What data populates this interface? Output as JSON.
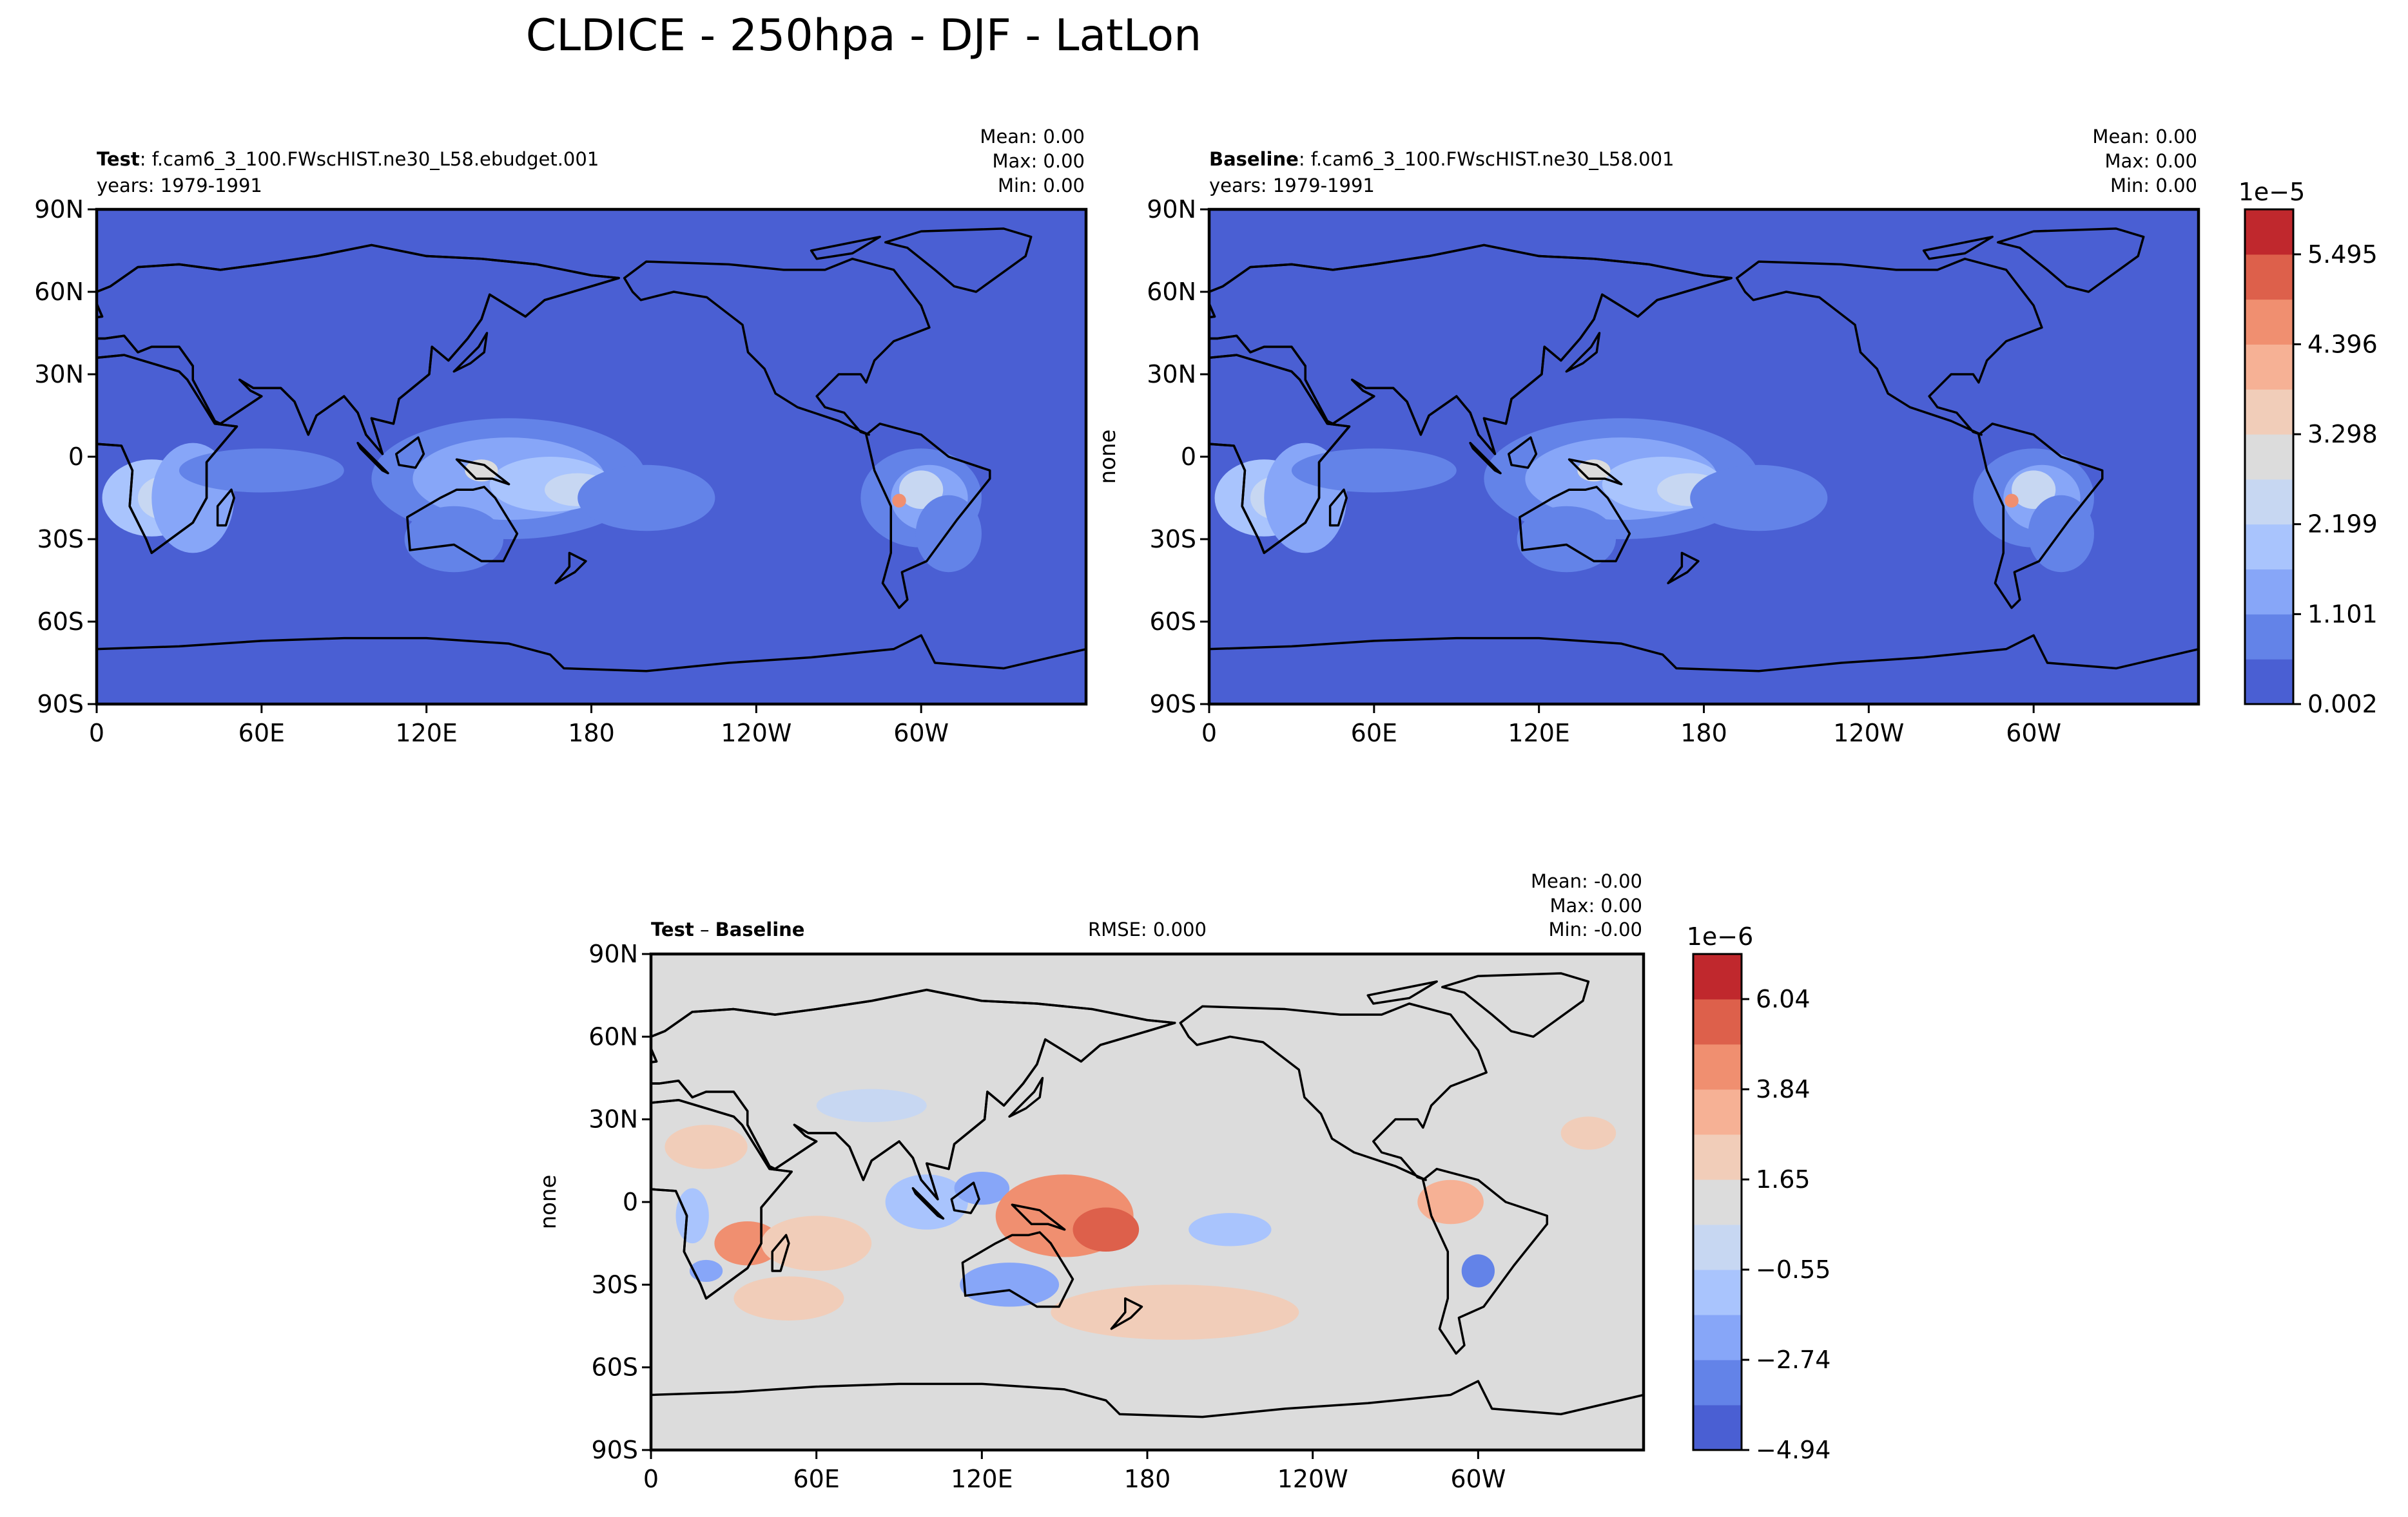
{
  "title": "CLDICE - 250hpa - DJF - LatLon",
  "colors": {
    "ocean": "#4a5fd3",
    "diff_bg": "#dcdcdc",
    "coast": "#000000"
  },
  "ticks": {
    "lat": [
      "90N",
      "60N",
      "30N",
      "0",
      "30S",
      "60S",
      "90S"
    ],
    "lon": [
      "0",
      "60E",
      "120E",
      "180",
      "120W",
      "60W"
    ]
  },
  "chart_data": [
    {
      "id": "test",
      "type": "heatmap",
      "label_bold": "Test",
      "label_rest": ": f.cam6_3_100.FWscHIST.ne30_L58.ebudget.001",
      "years": "years: 1979-1991",
      "stats": {
        "mean": "Mean:  0.00",
        "max": "Max:  0.00",
        "min": "Min:  0.00"
      },
      "ylabel": "",
      "ylim": [
        -90,
        90
      ],
      "xlim": [
        0,
        360
      ]
    },
    {
      "id": "baseline",
      "type": "heatmap",
      "label_bold": "Baseline",
      "label_rest": ": f.cam6_3_100.FWscHIST.ne30_L58.001",
      "years": "years: 1979-1991",
      "stats": {
        "mean": "Mean:  0.00",
        "max": "Max:  0.00",
        "min": "Min:  0.00"
      },
      "ylabel": "none",
      "ylim": [
        -90,
        90
      ],
      "xlim": [
        0,
        360
      ]
    },
    {
      "id": "diff",
      "type": "heatmap",
      "label_bold": "Test",
      "label_mid": " – ",
      "label_bold2": "Baseline",
      "rmse": "RMSE: 0.000",
      "stats": {
        "mean": "Mean: -0.00",
        "max": "Max:  0.00",
        "min": "Min: -0.00"
      },
      "ylabel": "none",
      "ylim": [
        -90,
        90
      ],
      "xlim": [
        0,
        360
      ]
    }
  ],
  "colorbars": {
    "main": {
      "exponent": "1e−5",
      "ticks": [
        "0.002",
        "1.101",
        "2.199",
        "3.298",
        "4.396",
        "5.495"
      ],
      "colors": [
        "#4a5fd3",
        "#6383e8",
        "#87a6f8",
        "#a9c4fd",
        "#c7d7f2",
        "#dcdcdc",
        "#f1cdb9",
        "#f6b195",
        "#f08f70",
        "#dd604b",
        "#c0282d"
      ]
    },
    "diff": {
      "exponent": "1e−6",
      "ticks": [
        "−4.94",
        "−2.74",
        "−0.55",
        "1.65",
        "3.84",
        "6.04"
      ],
      "colors": [
        "#4a5fd3",
        "#6383e8",
        "#87a6f8",
        "#a9c4fd",
        "#c7d7f2",
        "#dcdcdc",
        "#f1cdb9",
        "#f6b195",
        "#f08f70",
        "#dd604b",
        "#c0282d"
      ]
    }
  },
  "fields": {
    "main": [
      {
        "lon": 20,
        "lat": -15,
        "rx": 18,
        "ry": 14,
        "level": 3
      },
      {
        "lon": 25,
        "lat": -15,
        "rx": 10,
        "ry": 8,
        "level": 4
      },
      {
        "lon": 35,
        "lat": -15,
        "rx": 15,
        "ry": 20,
        "level": 2
      },
      {
        "lon": 60,
        "lat": -5,
        "rx": 30,
        "ry": 8,
        "level": 1
      },
      {
        "lon": 150,
        "lat": -8,
        "rx": 50,
        "ry": 22,
        "level": 1
      },
      {
        "lon": 150,
        "lat": -8,
        "rx": 35,
        "ry": 15,
        "level": 2
      },
      {
        "lon": 165,
        "lat": -10,
        "rx": 22,
        "ry": 10,
        "level": 3
      },
      {
        "lon": 175,
        "lat": -12,
        "rx": 12,
        "ry": 6,
        "level": 4
      },
      {
        "lon": 140,
        "lat": -5,
        "rx": 6,
        "ry": 4,
        "level": 5
      },
      {
        "lon": 200,
        "lat": -15,
        "rx": 25,
        "ry": 12,
        "level": 1
      },
      {
        "lon": 130,
        "lat": -30,
        "rx": 18,
        "ry": 12,
        "level": 1
      },
      {
        "lon": 300,
        "lat": -15,
        "rx": 22,
        "ry": 18,
        "level": 1
      },
      {
        "lon": 303,
        "lat": -15,
        "rx": 14,
        "ry": 12,
        "level": 2
      },
      {
        "lon": 300,
        "lat": -12,
        "rx": 8,
        "ry": 7,
        "level": 4
      },
      {
        "lon": 292,
        "lat": -16,
        "rx": 2.5,
        "ry": 2.5,
        "level": 8
      },
      {
        "lon": 310,
        "lat": -28,
        "rx": 12,
        "ry": 14,
        "level": 1
      }
    ],
    "diff": [
      {
        "lon": 15,
        "lat": -5,
        "rx": 6,
        "ry": 10,
        "level": 3
      },
      {
        "lon": 35,
        "lat": -15,
        "rx": 12,
        "ry": 8,
        "level": 8
      },
      {
        "lon": 60,
        "lat": -15,
        "rx": 20,
        "ry": 10,
        "level": 6
      },
      {
        "lon": 50,
        "lat": -35,
        "rx": 20,
        "ry": 8,
        "level": 6
      },
      {
        "lon": 20,
        "lat": -25,
        "rx": 6,
        "ry": 4,
        "level": 2
      },
      {
        "lon": 100,
        "lat": 0,
        "rx": 15,
        "ry": 10,
        "level": 3
      },
      {
        "lon": 120,
        "lat": 5,
        "rx": 10,
        "ry": 6,
        "level": 2
      },
      {
        "lon": 150,
        "lat": -5,
        "rx": 25,
        "ry": 15,
        "level": 8
      },
      {
        "lon": 165,
        "lat": -10,
        "rx": 12,
        "ry": 8,
        "level": 9
      },
      {
        "lon": 130,
        "lat": -30,
        "rx": 18,
        "ry": 8,
        "level": 2
      },
      {
        "lon": 190,
        "lat": -40,
        "rx": 45,
        "ry": 10,
        "level": 6
      },
      {
        "lon": 210,
        "lat": -10,
        "rx": 15,
        "ry": 6,
        "level": 3
      },
      {
        "lon": 290,
        "lat": 0,
        "rx": 12,
        "ry": 8,
        "level": 7
      },
      {
        "lon": 300,
        "lat": -25,
        "rx": 6,
        "ry": 6,
        "level": 1
      },
      {
        "lon": 20,
        "lat": 20,
        "rx": 15,
        "ry": 8,
        "level": 6
      },
      {
        "lon": 80,
        "lat": 35,
        "rx": 20,
        "ry": 6,
        "level": 4
      },
      {
        "lon": 340,
        "lat": 25,
        "rx": 10,
        "ry": 6,
        "level": 6
      }
    ]
  }
}
